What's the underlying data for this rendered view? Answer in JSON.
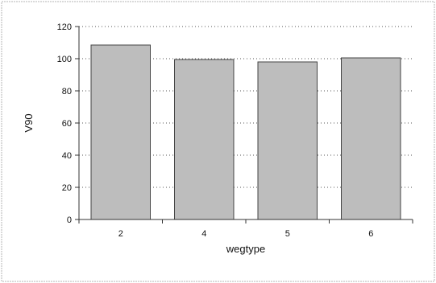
{
  "chart_data": {
    "type": "bar",
    "categories": [
      "2",
      "4",
      "5",
      "6"
    ],
    "values": [
      108.5,
      99.5,
      98,
      100.5
    ],
    "xlabel": "wegtype",
    "ylabel": "V90",
    "ylim": [
      0,
      120
    ],
    "yticks": [
      "0",
      "20",
      "40",
      "60",
      "80",
      "100",
      "120"
    ],
    "grid": "horizontal, dotted",
    "legend": "none",
    "bar_color": "#bdbdbd",
    "bar_edge_color": "#444444"
  }
}
